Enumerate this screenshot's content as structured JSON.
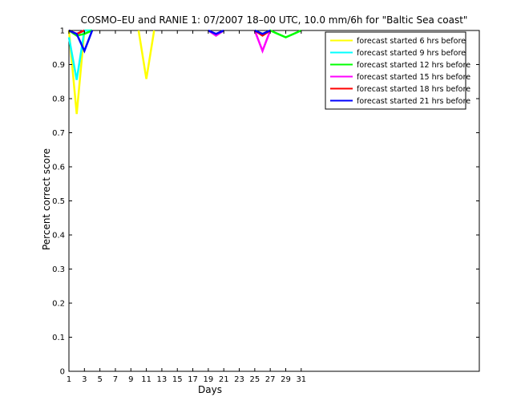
{
  "chart_data": {
    "type": "line",
    "title": "COSMO–EU and RANIE 1: 07/2007 18–00 UTC, 10.0 mm/6h for \"Baltic Sea coast\"",
    "xlabel": "Days",
    "ylabel": "Percent correct score",
    "xlim": [
      1,
      54
    ],
    "ylim": [
      0,
      1
    ],
    "xticks": [
      1,
      3,
      5,
      7,
      9,
      11,
      13,
      15,
      17,
      19,
      21,
      23,
      25,
      27,
      29,
      31
    ],
    "yticks": [
      0,
      0.1,
      0.2,
      0.3,
      0.4,
      0.5,
      0.6,
      0.7,
      0.8,
      0.9,
      1
    ],
    "ytick_labels": [
      "0",
      "0.1",
      "0.2",
      "0.3",
      "0.4",
      "0.5",
      "0.6",
      "0.7",
      "0.8",
      "0.9",
      "1"
    ],
    "grid": false,
    "legend_position": "top-right",
    "series": [
      {
        "name": "forecast started 6 hrs before",
        "color": "#ffff00",
        "segments": [
          {
            "x": [
              1,
              2,
              3,
              4
            ],
            "y": [
              1,
              0.755,
              1,
              1
            ]
          },
          {
            "x": [
              10,
              11,
              12
            ],
            "y": [
              1,
              0.858,
              1
            ]
          }
        ]
      },
      {
        "name": "forecast started 9 hrs before",
        "color": "#00ffff",
        "segments": [
          {
            "x": [
              1,
              2,
              3,
              4
            ],
            "y": [
              0.98,
              0.855,
              1,
              1
            ]
          }
        ]
      },
      {
        "name": "forecast started 12 hrs before",
        "color": "#00ff00",
        "segments": [
          {
            "x": [
              1,
              2,
              3,
              4
            ],
            "y": [
              1,
              0.985,
              0.99,
              1
            ]
          },
          {
            "x": [
              19,
              20,
              21
            ],
            "y": [
              1,
              0.985,
              1
            ]
          },
          {
            "x": [
              25,
              26,
              27,
              28,
              29,
              30,
              31
            ],
            "y": [
              1,
              0.99,
              1,
              0.99,
              0.98,
              0.99,
              1
            ]
          }
        ]
      },
      {
        "name": "forecast started 15 hrs before",
        "color": "#ff00ff",
        "segments": [
          {
            "x": [
              1,
              2,
              3
            ],
            "y": [
              1,
              0.99,
              1
            ]
          },
          {
            "x": [
              19,
              20,
              21
            ],
            "y": [
              1,
              0.985,
              1
            ]
          },
          {
            "x": [
              25,
              26,
              27
            ],
            "y": [
              1,
              0.94,
              1
            ]
          }
        ]
      },
      {
        "name": "forecast started 18 hrs before",
        "color": "#ff0000",
        "segments": [
          {
            "x": [
              1,
              2,
              3
            ],
            "y": [
              1,
              0.99,
              1
            ]
          },
          {
            "x": [
              25,
              26,
              27
            ],
            "y": [
              1,
              0.985,
              1
            ]
          }
        ]
      },
      {
        "name": "forecast started 21 hrs before",
        "color": "#0000ff",
        "segments": [
          {
            "x": [
              1,
              2,
              3,
              4
            ],
            "y": [
              1,
              0.99,
              0.94,
              1
            ]
          },
          {
            "x": [
              19,
              20,
              21
            ],
            "y": [
              1,
              0.99,
              1
            ]
          },
          {
            "x": [
              25,
              26,
              27
            ],
            "y": [
              1,
              0.99,
              1
            ]
          }
        ]
      }
    ]
  }
}
